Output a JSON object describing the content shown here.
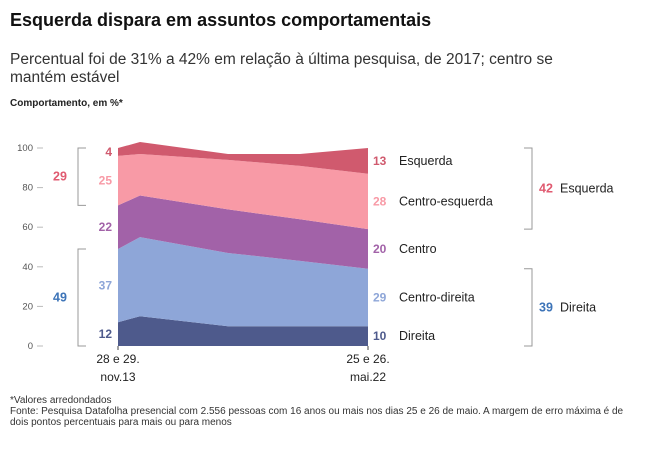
{
  "header": {
    "title": "Esquerda dispara em assuntos comportamentais",
    "subtitle": "Percentual foi de 31% a 42% em relação à última pesquisa, de 2017; centro se mantém estável",
    "unit_label": "Comportamento, em %*"
  },
  "footer": {
    "note": "*Valores arredondados",
    "source": "Fonte: Pesquisa Datafolha presencial com 2.556 pessoas com 16 anos ou mais nos dias 25 e 26 de maio. A margem de erro máxima é de dois pontos percentuais para mais ou para menos"
  },
  "chart_data": {
    "type": "area",
    "stacked": true,
    "x_labels": [
      "28 e 29. nov.13",
      "",
      "",
      "",
      "25 e 26. mai.22"
    ],
    "x_label_lines": [
      [
        "28 e 29.",
        "nov.13"
      ],
      [
        "25 e 26.",
        "mai.22"
      ]
    ],
    "ylim": [
      0,
      100
    ],
    "yticks": [
      0,
      20,
      40,
      60,
      80,
      100
    ],
    "grid": false,
    "series": [
      {
        "name": "Direita",
        "color": "#4e5a8c",
        "values": [
          12,
          15,
          10,
          10,
          10
        ],
        "start_label": "12",
        "end_label": "10"
      },
      {
        "name": "Centro-direita",
        "color": "#8ea6d8",
        "values": [
          37,
          40,
          37,
          33,
          29
        ],
        "start_label": "37",
        "end_label": "29"
      },
      {
        "name": "Centro",
        "color": "#a262a8",
        "values": [
          22,
          21,
          22,
          21,
          20
        ],
        "start_label": "22",
        "end_label": "20"
      },
      {
        "name": "Centro-esquerda",
        "color": "#f89aa6",
        "values": [
          25,
          21,
          25,
          27,
          28
        ],
        "start_label": "25",
        "end_label": "28"
      },
      {
        "name": "Esquerda",
        "color": "#d05a6e",
        "values": [
          4,
          6,
          3,
          6,
          13
        ],
        "start_label": "4",
        "end_label": "13"
      }
    ],
    "start_groups": [
      {
        "value": "29",
        "color": "#e05a70",
        "from": 71,
        "to": 100
      },
      {
        "value": "49",
        "color": "#3d74b8",
        "from": 0,
        "to": 49
      }
    ],
    "end_groups": [
      {
        "value": "42",
        "name": "Esquerda",
        "color": "#e05a70",
        "from": 59,
        "to": 100
      },
      {
        "value": "39",
        "name": "Direita",
        "color": "#3d74b8",
        "from": 0,
        "to": 39
      }
    ]
  }
}
